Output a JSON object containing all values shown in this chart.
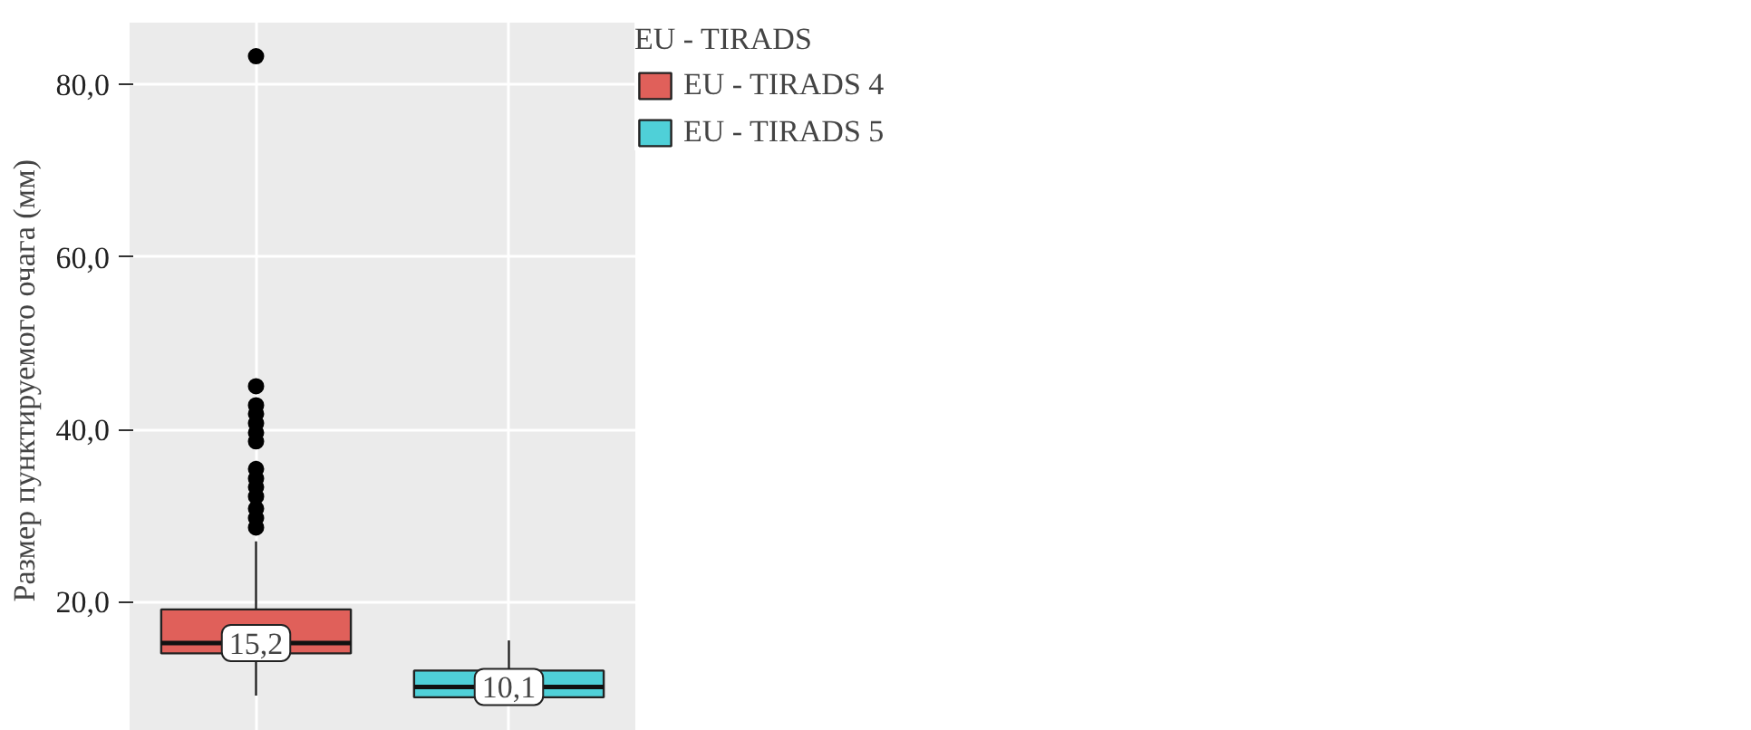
{
  "chart_data": {
    "type": "box",
    "ylabel": "Размер пунктируемого очага  (мм)",
    "legend_title": "EU - TIRADS",
    "categories": [
      null,
      null
    ],
    "ylim": [
      5,
      87.2
    ],
    "yticks": [
      {
        "value": 20,
        "label": "20,0"
      },
      {
        "value": 40,
        "label": "40,0"
      },
      {
        "value": 60,
        "label": "60,0"
      },
      {
        "value": 80,
        "label": "80,0"
      }
    ],
    "tick_labels": "y",
    "grid": true,
    "legend": "right",
    "series": [
      {
        "name": "EU - TIRADS 4",
        "color": "#e0605a",
        "boxes": [
          {
            "low": 9.1,
            "q1": 14.0,
            "median": 15.2,
            "q3": 19.1,
            "high": 27.0,
            "outliers": [
              28.6,
              29.7,
              30.8,
              32.2,
              33.3,
              34.3,
              35.4,
              38.6,
              39.6,
              40.7,
              41.8,
              42.8,
              45.0,
              83.3
            ]
          },
          null
        ],
        "value_labels": [
          "15,2",
          null
        ]
      },
      {
        "name": "EU - TIRADS 5",
        "color": "#4fd0d8",
        "boxes": [
          null,
          {
            "low": 8.8,
            "q1": 8.9,
            "median": 10.1,
            "q3": 12.0,
            "high": 15.5
          }
        ],
        "value_labels": [
          null,
          "10,1"
        ]
      }
    ]
  }
}
